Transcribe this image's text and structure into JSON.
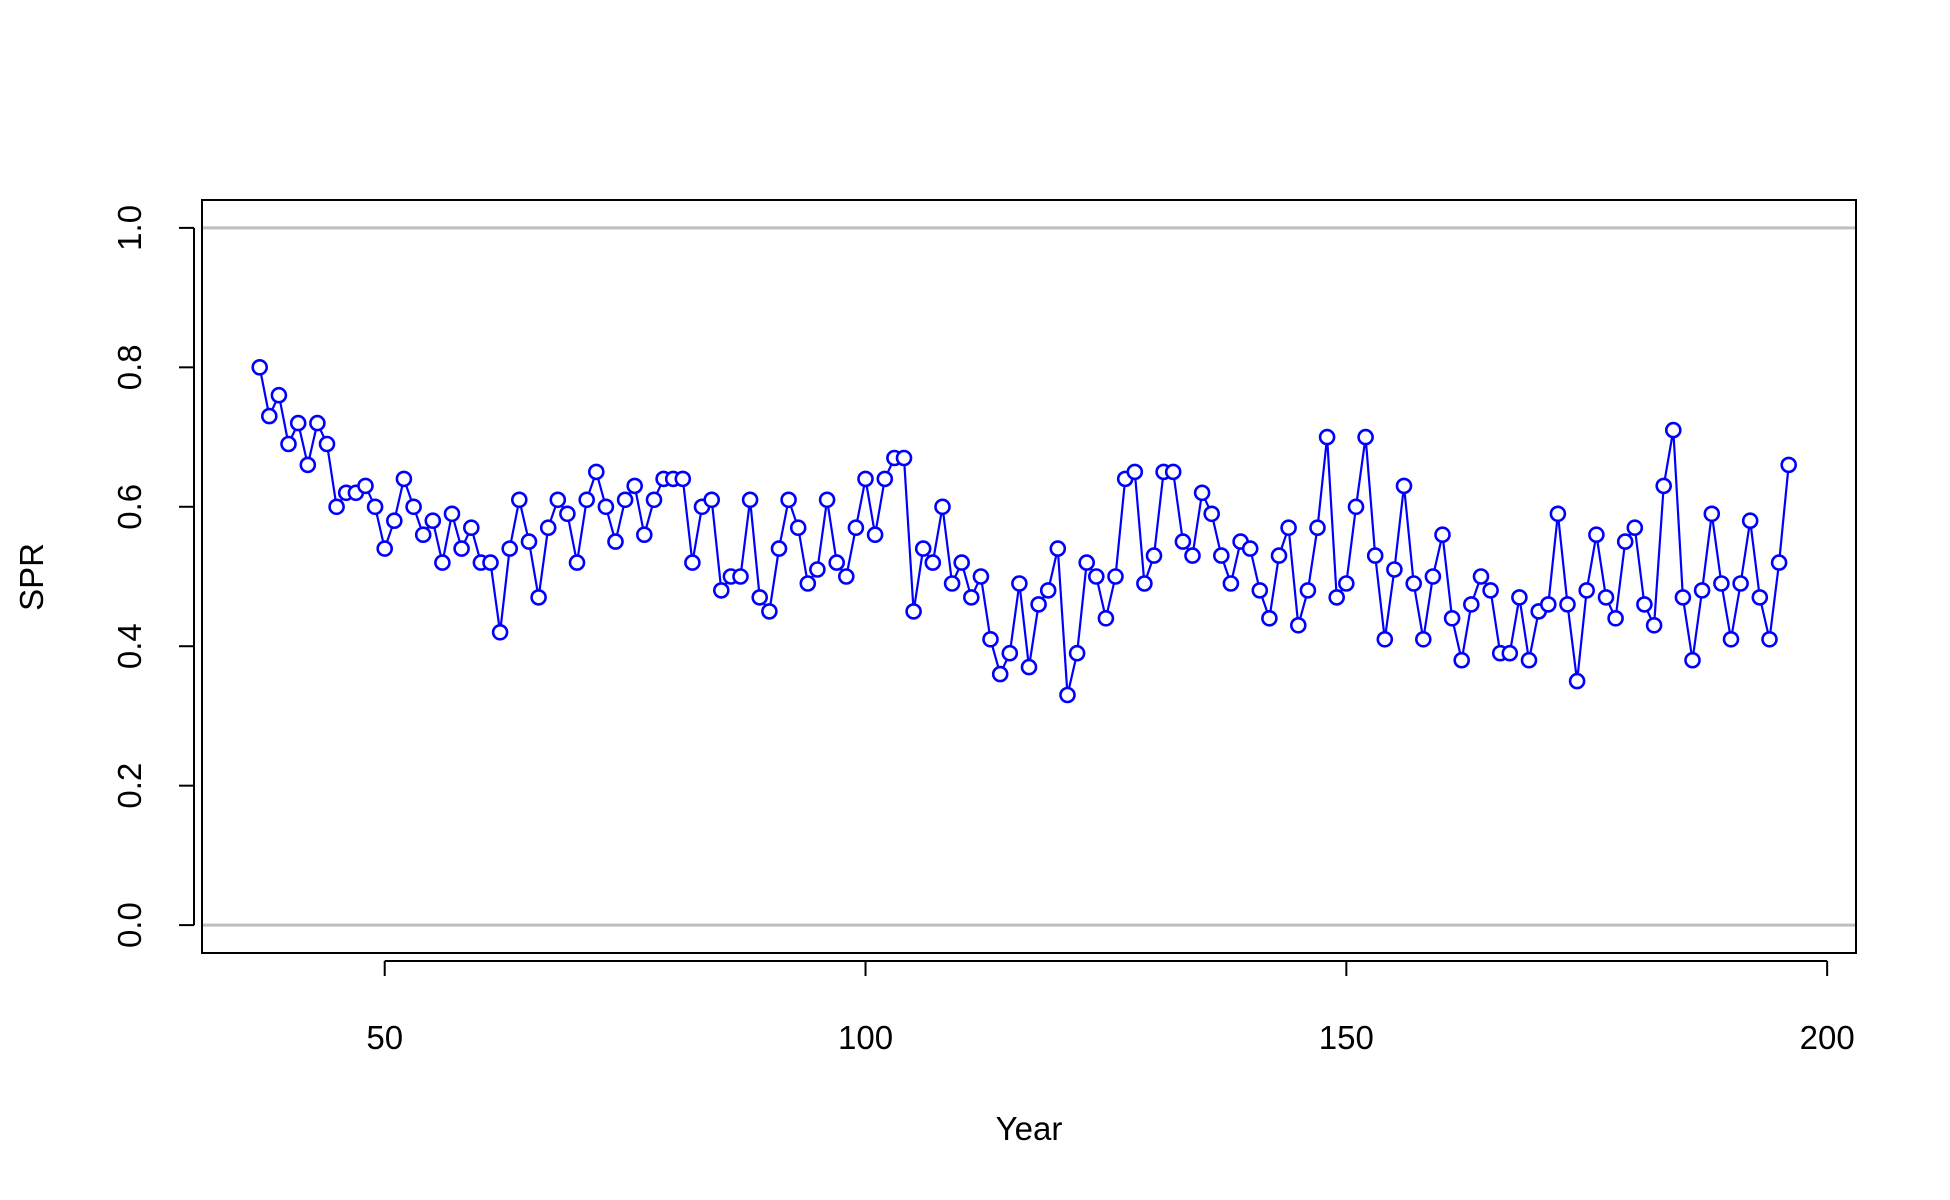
{
  "chart_data": {
    "type": "line",
    "title": "",
    "xlabel": "Year",
    "ylabel": "SPR",
    "xlim": [
      31,
      203
    ],
    "ylim": [
      -0.04,
      1.04
    ],
    "xticks": [
      50,
      100,
      150,
      200
    ],
    "yticks": [
      0.0,
      0.2,
      0.4,
      0.6,
      0.8,
      1.0
    ],
    "xtick_labels": [
      "50",
      "100",
      "150",
      "200"
    ],
    "ytick_labels": [
      "0.0",
      "0.2",
      "0.4",
      "0.6",
      "0.8",
      "1.0"
    ],
    "reference_lines": [
      0.0,
      1.0
    ],
    "grid": false,
    "legend": "none",
    "colors": {
      "series": "#0000ff",
      "reference": "#bebebe",
      "axis": "#000000"
    },
    "series": [
      {
        "marker": "open-circle",
        "x": [
          37,
          38,
          39,
          40,
          41,
          42,
          43,
          44,
          45,
          46,
          47,
          48,
          49,
          50,
          51,
          52,
          53,
          54,
          55,
          56,
          57,
          58,
          59,
          60,
          61,
          62,
          63,
          64,
          65,
          66,
          67,
          68,
          69,
          70,
          71,
          72,
          73,
          74,
          75,
          76,
          77,
          78,
          79,
          80,
          81,
          82,
          83,
          84,
          85,
          86,
          87,
          88,
          89,
          90,
          91,
          92,
          93,
          94,
          95,
          96,
          97,
          98,
          99,
          100,
          101,
          102,
          103,
          104,
          105,
          106,
          107,
          108,
          109,
          110,
          111,
          112,
          113,
          114,
          115,
          116,
          117,
          118,
          119,
          120,
          121,
          122,
          123,
          124,
          125,
          126,
          127,
          128,
          129,
          130,
          131,
          132,
          133,
          134,
          135,
          136,
          137,
          138,
          139,
          140,
          141,
          142,
          143,
          144,
          145,
          146,
          147,
          148,
          149,
          150,
          151,
          152,
          153,
          154,
          155,
          156,
          157,
          158,
          159,
          160,
          161,
          162,
          163,
          164,
          165,
          166,
          167,
          168,
          169,
          170,
          171,
          172,
          173,
          174,
          175,
          176,
          177,
          178,
          179,
          180,
          181,
          182,
          183,
          184,
          185,
          186,
          187,
          188,
          189,
          190,
          191,
          192,
          193,
          194,
          195,
          196
        ],
        "values": [
          0.8,
          0.73,
          0.76,
          0.69,
          0.72,
          0.66,
          0.72,
          0.69,
          0.6,
          0.62,
          0.62,
          0.63,
          0.6,
          0.54,
          0.58,
          0.64,
          0.6,
          0.56,
          0.58,
          0.52,
          0.59,
          0.54,
          0.57,
          0.52,
          0.52,
          0.42,
          0.54,
          0.61,
          0.55,
          0.47,
          0.57,
          0.61,
          0.59,
          0.52,
          0.61,
          0.65,
          0.6,
          0.55,
          0.61,
          0.63,
          0.56,
          0.61,
          0.64,
          0.64,
          0.64,
          0.52,
          0.6,
          0.61,
          0.48,
          0.5,
          0.5,
          0.61,
          0.47,
          0.45,
          0.54,
          0.61,
          0.57,
          0.49,
          0.51,
          0.61,
          0.52,
          0.5,
          0.57,
          0.64,
          0.56,
          0.64,
          0.67,
          0.67,
          0.45,
          0.54,
          0.52,
          0.6,
          0.49,
          0.52,
          0.47,
          0.5,
          0.41,
          0.36,
          0.39,
          0.49,
          0.37,
          0.46,
          0.48,
          0.54,
          0.33,
          0.39,
          0.52,
          0.5,
          0.44,
          0.5,
          0.64,
          0.65,
          0.49,
          0.53,
          0.65,
          0.65,
          0.55,
          0.53,
          0.62,
          0.59,
          0.53,
          0.49,
          0.55,
          0.54,
          0.48,
          0.44,
          0.53,
          0.57,
          0.43,
          0.48,
          0.57,
          0.7,
          0.47,
          0.49,
          0.6,
          0.7,
          0.53,
          0.41,
          0.51,
          0.63,
          0.49,
          0.41,
          0.5,
          0.56,
          0.44,
          0.38,
          0.46,
          0.5,
          0.48,
          0.39,
          0.39,
          0.47,
          0.38,
          0.45,
          0.46,
          0.59,
          0.46,
          0.35,
          0.48,
          0.56,
          0.47,
          0.44,
          0.55,
          0.57,
          0.46,
          0.43,
          0.63,
          0.71,
          0.47,
          0.38,
          0.48,
          0.59,
          0.49,
          0.41,
          0.49,
          0.58,
          0.47,
          0.41,
          0.52,
          0.66
        ]
      }
    ]
  }
}
